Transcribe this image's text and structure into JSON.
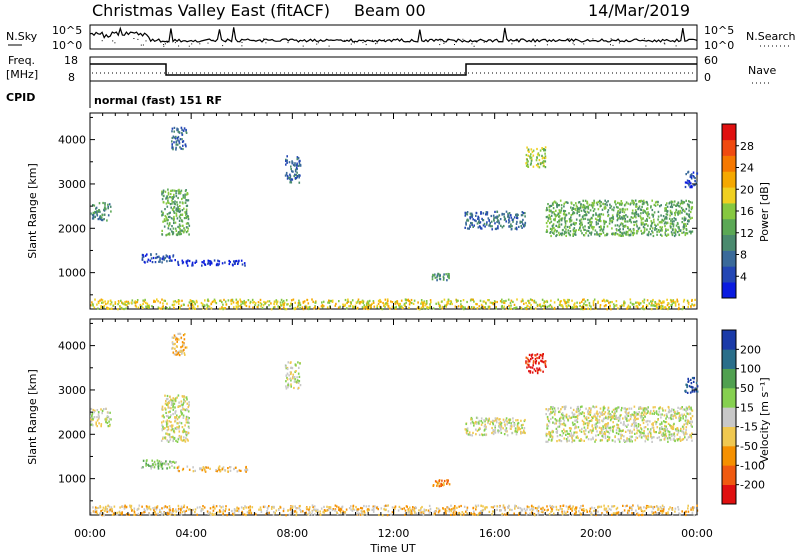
{
  "header": {
    "site": "Christmas Valley East (fitACF)",
    "beam": "Beam 00",
    "date": "14/Mar/2019",
    "mode": "normal (fast) 151 RF"
  },
  "top_panels": {
    "nsky_label": "N.Sky",
    "nsky_ticks": [
      "10^5",
      "10^0"
    ],
    "nsearch_label": "N.Search",
    "nsearch_ticks": [
      "10^5",
      "10^0"
    ],
    "freq_label_1": "Freq.",
    "freq_label_2": "[MHz]",
    "freq_ticks": [
      "18",
      "8"
    ],
    "nave_label": "Nave",
    "nave_ticks": [
      "60",
      "0"
    ],
    "cpid_label": "CPID"
  },
  "chart_data": [
    {
      "type": "heatmap",
      "name": "power",
      "ylabel": "Slant Range [km]",
      "y_ticks": [
        "4000",
        "3000",
        "2000",
        "1000"
      ],
      "xlim_hours": [
        0,
        24
      ],
      "ylim_km": [
        180,
        4600
      ],
      "colorbar_label": "Power [dB]",
      "colorbar_ticks": [
        "28",
        "24",
        "20",
        "16",
        "12",
        "8",
        "4"
      ],
      "colors": [
        "#0a1be0",
        "#2346b4",
        "#3a6a9a",
        "#4a8a6e",
        "#5ba855",
        "#86c840",
        "#f0d020",
        "#f5a800",
        "#f57800",
        "#f04a10",
        "#e01010"
      ],
      "regions": [
        {
          "t0": 0.0,
          "t1": 0.8,
          "r0": 2200,
          "r1": 2600,
          "level": 3
        },
        {
          "t0": 2.0,
          "t1": 3.4,
          "r0": 1250,
          "r1": 1450,
          "level": 1
        },
        {
          "t0": 3.4,
          "t1": 6.2,
          "r0": 1180,
          "r1": 1300,
          "level": 0
        },
        {
          "t0": 2.8,
          "t1": 3.9,
          "r0": 1850,
          "r1": 2900,
          "level": 4
        },
        {
          "t0": 3.2,
          "t1": 3.8,
          "r0": 3800,
          "r1": 4300,
          "level": 2
        },
        {
          "t0": 7.7,
          "t1": 8.3,
          "r0": 3050,
          "r1": 3650,
          "level": 2
        },
        {
          "t0": 13.5,
          "t1": 14.2,
          "r0": 850,
          "r1": 1000,
          "level": 3
        },
        {
          "t0": 14.8,
          "t1": 17.2,
          "r0": 2000,
          "r1": 2400,
          "level": 2
        },
        {
          "t0": 17.2,
          "t1": 18.0,
          "r0": 3400,
          "r1": 3850,
          "level": 5
        },
        {
          "t0": 18.0,
          "t1": 23.8,
          "r0": 1850,
          "r1": 2650,
          "level": 4
        },
        {
          "t0": 23.5,
          "t1": 24.0,
          "r0": 2950,
          "r1": 3300,
          "level": 1
        },
        {
          "t0": 0.0,
          "t1": 24.0,
          "r0": 200,
          "r1": 420,
          "level": 6
        }
      ]
    },
    {
      "type": "heatmap",
      "name": "velocity",
      "ylabel": "Slant Range [km]",
      "y_ticks": [
        "4000",
        "3000",
        "2000",
        "1000"
      ],
      "xlabel": "Time UT",
      "x_ticks": [
        "00:00",
        "04:00",
        "08:00",
        "12:00",
        "16:00",
        "20:00",
        "00:00"
      ],
      "xlim_hours": [
        0,
        24
      ],
      "ylim_km": [
        180,
        4600
      ],
      "colorbar_label": "Velocity [m s⁻¹]",
      "colorbar_ticks": [
        "200",
        "100",
        "50",
        "15",
        "-15",
        "-50",
        "-100",
        "-200"
      ],
      "colors": [
        "#e01010",
        "#f05a10",
        "#f59000",
        "#f0c850",
        "#c8c8c8",
        "#86d050",
        "#50a050",
        "#2a6e8a",
        "#1a3aa8"
      ],
      "regions": [
        {
          "t0": 0.0,
          "t1": 0.8,
          "r0": 2200,
          "r1": 2600,
          "level": 4
        },
        {
          "t0": 2.0,
          "t1": 3.4,
          "r0": 1250,
          "r1": 1450,
          "level": 5
        },
        {
          "t0": 3.4,
          "t1": 6.2,
          "r0": 1180,
          "r1": 1300,
          "level": 3
        },
        {
          "t0": 2.8,
          "t1": 3.9,
          "r0": 1850,
          "r1": 2900,
          "level": 4
        },
        {
          "t0": 3.2,
          "t1": 3.8,
          "r0": 3800,
          "r1": 4300,
          "level": 3
        },
        {
          "t0": 7.7,
          "t1": 8.3,
          "r0": 3050,
          "r1": 3650,
          "level": 4
        },
        {
          "t0": 13.5,
          "t1": 14.2,
          "r0": 850,
          "r1": 1000,
          "level": 2
        },
        {
          "t0": 14.8,
          "t1": 17.2,
          "r0": 2000,
          "r1": 2400,
          "level": 4
        },
        {
          "t0": 17.2,
          "t1": 18.0,
          "r0": 3400,
          "r1": 3850,
          "level": 0
        },
        {
          "t0": 18.0,
          "t1": 23.8,
          "r0": 1850,
          "r1": 2650,
          "level": 4
        },
        {
          "t0": 23.5,
          "t1": 24.0,
          "r0": 2950,
          "r1": 3300,
          "level": 8
        },
        {
          "t0": 0.0,
          "t1": 24.0,
          "r0": 200,
          "r1": 420,
          "level": 3
        }
      ]
    }
  ]
}
